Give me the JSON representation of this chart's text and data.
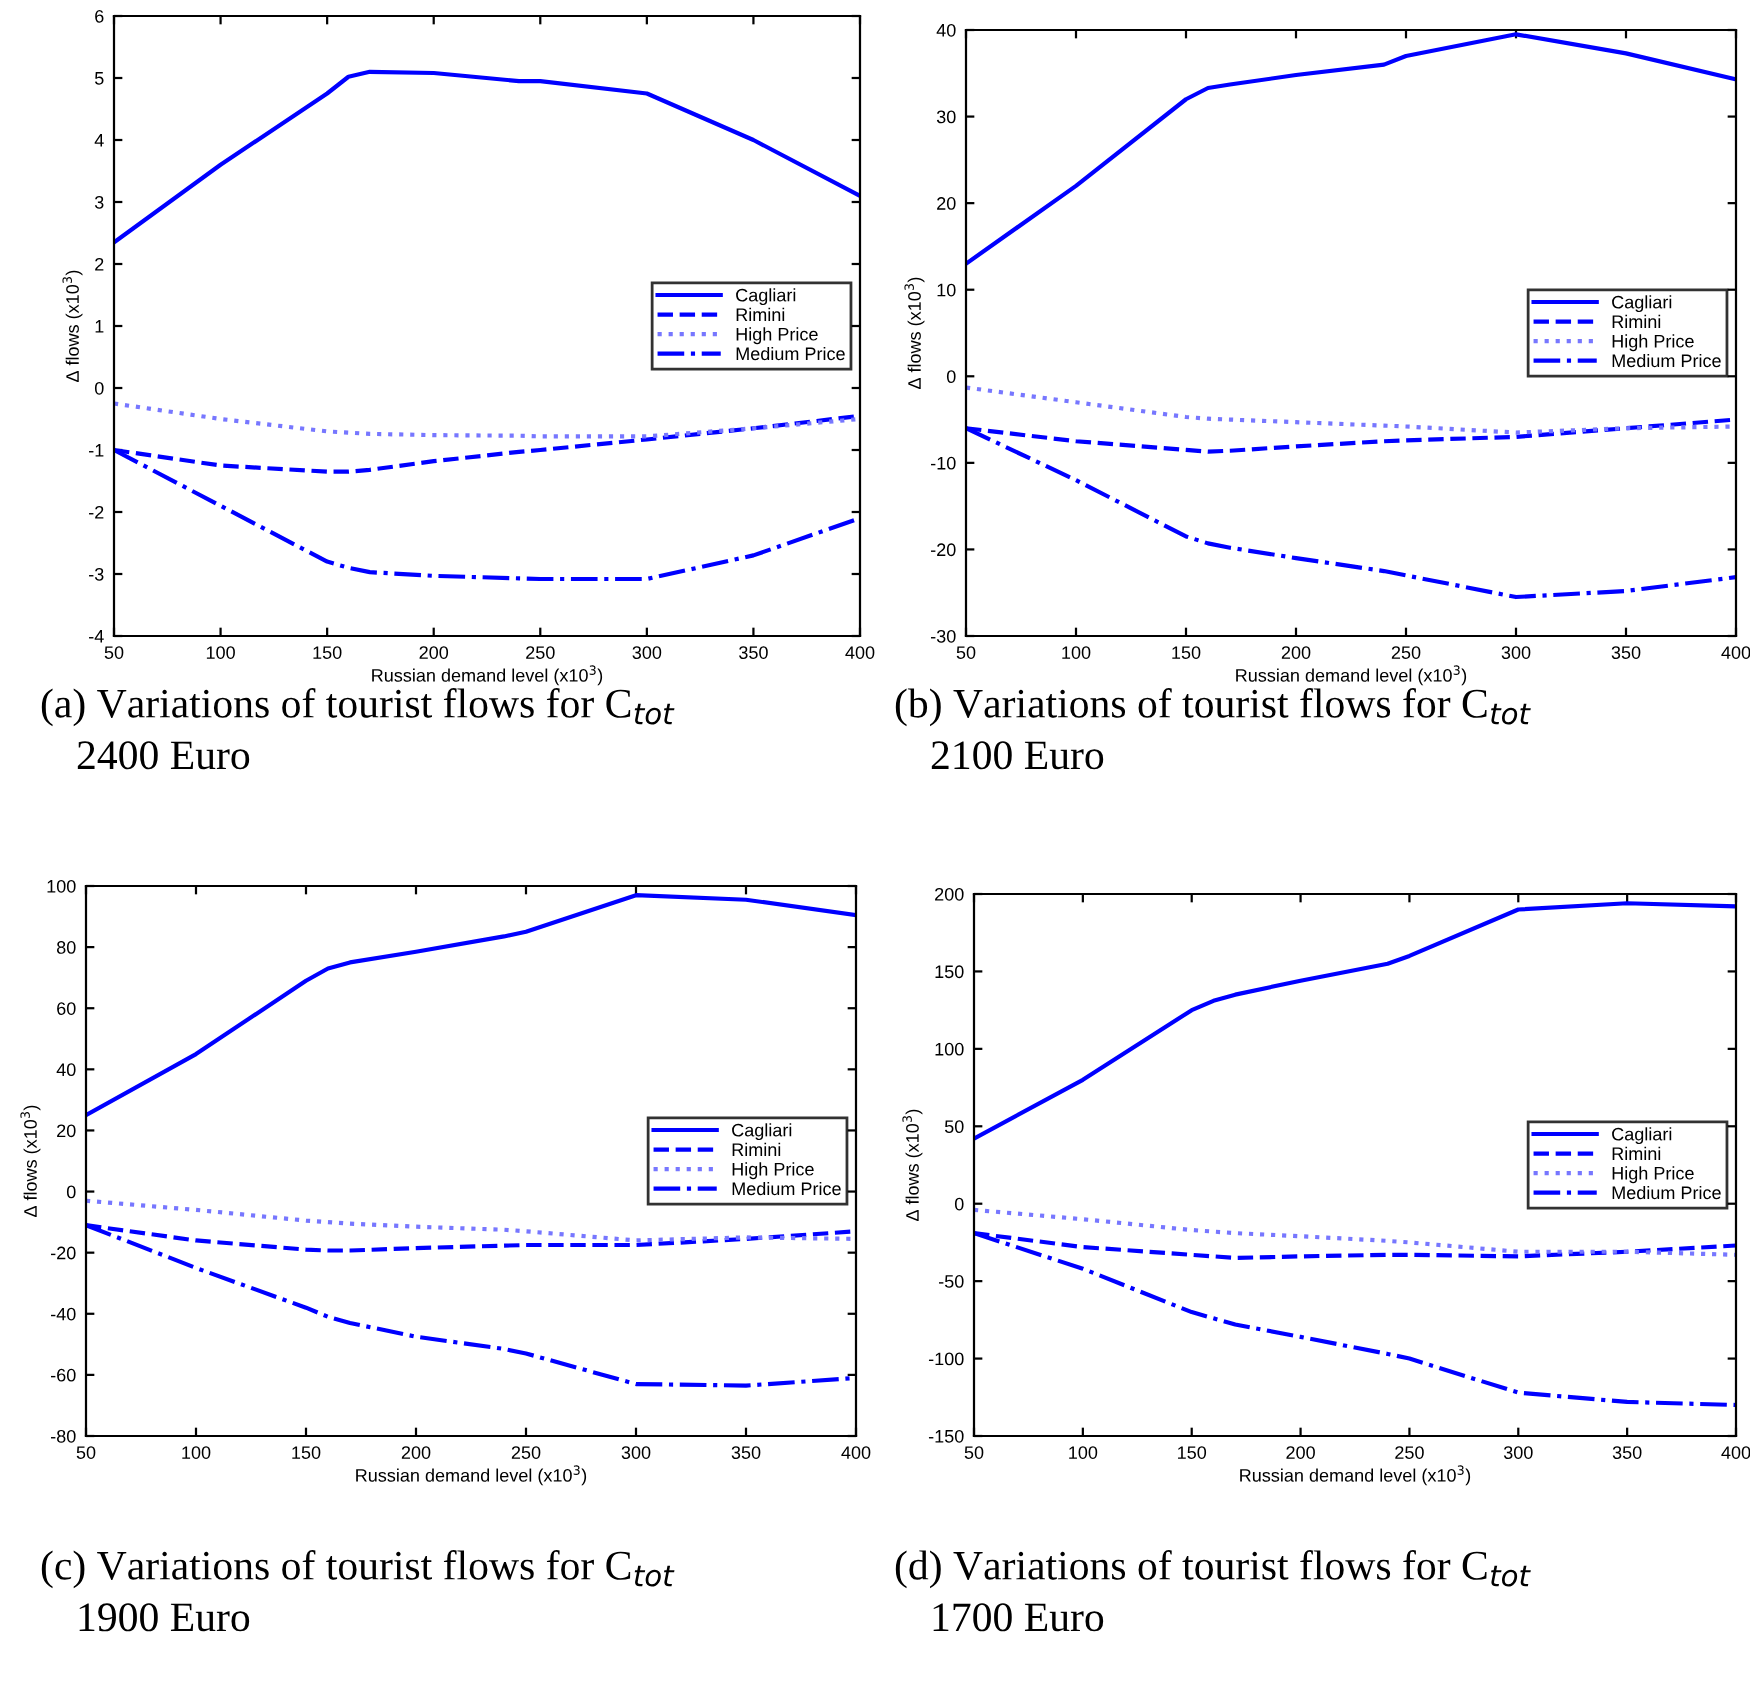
{
  "chart_data": [
    {
      "type": "line",
      "xlabel": "Russian demand level (x10$^{3}$)",
      "ylabel": "Δ flows (x10$^{3}$)",
      "xlim": [
        50,
        400
      ],
      "xticks": [
        50,
        100,
        150,
        200,
        250,
        300,
        350,
        400
      ],
      "ylim": [
        -4,
        6
      ],
      "yticks": [
        -4,
        -3,
        -2,
        -1,
        0,
        1,
        2,
        3,
        4,
        5,
        6
      ],
      "grid": false,
      "legend": "right",
      "marker": "none",
      "x": [
        50,
        100,
        150,
        160,
        170,
        200,
        240,
        250,
        300,
        350,
        400
      ],
      "annotations": [
        "(a) Variations of tourist flows for C$_{tot}$",
        "2400 Euro"
      ],
      "series": [
        {
          "name": "Cagliari",
          "color": "#0000ff",
          "line_style": "solid",
          "values": [
            2.35,
            3.6,
            4.75,
            5.02,
            5.1,
            5.08,
            4.95,
            4.95,
            4.75,
            4.0,
            3.1
          ]
        },
        {
          "name": "Rimini",
          "color": "#0000ff",
          "line_style": "dashed",
          "values": [
            -1.0,
            -1.25,
            -1.35,
            -1.35,
            -1.32,
            -1.18,
            -1.03,
            -1.0,
            -0.83,
            -0.65,
            -0.45
          ]
        },
        {
          "name": "High Price",
          "color": "#7777ff",
          "line_style": "dotted",
          "values": [
            -0.25,
            -0.5,
            -0.7,
            -0.72,
            -0.74,
            -0.76,
            -0.77,
            -0.78,
            -0.78,
            -0.65,
            -0.5
          ]
        },
        {
          "name": "Medium Price",
          "color": "#0000ff",
          "line_style": "dashdot",
          "values": [
            -1.0,
            -1.9,
            -2.8,
            -2.9,
            -2.97,
            -3.03,
            -3.07,
            -3.08,
            -3.08,
            -2.7,
            -2.1
          ]
        }
      ]
    },
    {
      "type": "line",
      "xlabel": "Russian demand level (x10$^{3}$)",
      "ylabel": "Δ flows (x10$^{3}$)",
      "xlim": [
        50,
        400
      ],
      "xticks": [
        50,
        100,
        150,
        200,
        250,
        300,
        350,
        400
      ],
      "ylim": [
        -30,
        40
      ],
      "yticks": [
        -30,
        -20,
        -10,
        0,
        10,
        20,
        30,
        40
      ],
      "grid": false,
      "legend": "right",
      "marker": "none",
      "x": [
        50,
        100,
        150,
        160,
        170,
        200,
        240,
        250,
        300,
        350,
        400
      ],
      "annotations": [
        "(b) Variations of tourist flows for C$_{tot}$",
        "2100 Euro"
      ],
      "series": [
        {
          "name": "Cagliari",
          "color": "#0000ff",
          "line_style": "solid",
          "values": [
            13,
            22,
            32,
            33.3,
            33.7,
            34.8,
            36,
            37,
            39.5,
            37.3,
            34.3
          ]
        },
        {
          "name": "Rimini",
          "color": "#0000ff",
          "line_style": "dashed",
          "values": [
            -6,
            -7.5,
            -8.5,
            -8.7,
            -8.6,
            -8.1,
            -7.5,
            -7.4,
            -7,
            -6,
            -5
          ]
        },
        {
          "name": "High Price",
          "color": "#7777ff",
          "line_style": "dotted",
          "values": [
            -1.3,
            -3,
            -4.7,
            -4.9,
            -5,
            -5.3,
            -5.7,
            -5.8,
            -6.5,
            -6,
            -5.8
          ]
        },
        {
          "name": "Medium Price",
          "color": "#0000ff",
          "line_style": "dashdot",
          "values": [
            -6,
            -12,
            -18.5,
            -19.3,
            -19.8,
            -21,
            -22.5,
            -23,
            -25.5,
            -24.8,
            -23.2
          ]
        }
      ]
    },
    {
      "type": "line",
      "xlabel": "Russian demand level (x10$^{3}$)",
      "ylabel": "Δ flows (x10$^{3}$)",
      "xlim": [
        50,
        400
      ],
      "xticks": [
        50,
        100,
        150,
        200,
        250,
        300,
        350,
        400
      ],
      "ylim": [
        -80,
        100
      ],
      "yticks": [
        -80,
        -60,
        -40,
        -20,
        0,
        20,
        40,
        60,
        80,
        100
      ],
      "grid": false,
      "legend": "right",
      "marker": "none",
      "x": [
        50,
        100,
        150,
        160,
        170,
        200,
        240,
        250,
        300,
        350,
        400
      ],
      "annotations": [
        "(c) Variations of tourist flows for C$_{tot}$",
        "1900 Euro"
      ],
      "series": [
        {
          "name": "Cagliari",
          "color": "#0000ff",
          "line_style": "solid",
          "values": [
            25,
            45,
            69,
            73,
            75,
            78.5,
            83.5,
            85,
            97,
            95.5,
            90.5
          ]
        },
        {
          "name": "Rimini",
          "color": "#0000ff",
          "line_style": "dashed",
          "values": [
            -11,
            -16,
            -19,
            -19.3,
            -19.3,
            -18.5,
            -17.7,
            -17.5,
            -17.5,
            -15.5,
            -13
          ]
        },
        {
          "name": "High Price",
          "color": "#7777ff",
          "line_style": "dotted",
          "values": [
            -3,
            -6,
            -9.5,
            -10,
            -10.5,
            -11.5,
            -12.5,
            -13,
            -16,
            -15,
            -15.5
          ]
        },
        {
          "name": "Medium Price",
          "color": "#0000ff",
          "line_style": "dashdot",
          "values": [
            -11,
            -25,
            -38,
            -41,
            -43,
            -47.5,
            -51.5,
            -53,
            -63,
            -63.5,
            -61
          ]
        }
      ]
    },
    {
      "type": "line",
      "xlabel": "Russian demand level (x10$^{3}$)",
      "ylabel": "Δ flows (x10$^{3}$)",
      "xlim": [
        50,
        400
      ],
      "xticks": [
        50,
        100,
        150,
        200,
        250,
        300,
        350,
        400
      ],
      "ylim": [
        -150,
        200
      ],
      "yticks": [
        -150,
        -100,
        -50,
        0,
        50,
        100,
        150,
        200
      ],
      "grid": false,
      "legend": "right",
      "marker": "none",
      "x": [
        50,
        100,
        150,
        160,
        170,
        200,
        240,
        250,
        300,
        350,
        400
      ],
      "annotations": [
        "(d) Variations of tourist flows for C$_{tot}$",
        "1700 Euro"
      ],
      "series": [
        {
          "name": "Cagliari",
          "color": "#0000ff",
          "line_style": "solid",
          "values": [
            42,
            80,
            125,
            131,
            135,
            144,
            155,
            160,
            190,
            194,
            192
          ]
        },
        {
          "name": "Rimini",
          "color": "#0000ff",
          "line_style": "dashed",
          "values": [
            -19,
            -28,
            -33,
            -34,
            -35,
            -34,
            -33,
            -33,
            -34,
            -31,
            -27
          ]
        },
        {
          "name": "High Price",
          "color": "#7777ff",
          "line_style": "dotted",
          "values": [
            -4,
            -10,
            -17,
            -18,
            -19,
            -21,
            -24,
            -25,
            -31,
            -31,
            -33
          ]
        },
        {
          "name": "Medium Price",
          "color": "#0000ff",
          "line_style": "dashdot",
          "values": [
            -19,
            -42,
            -70,
            -74,
            -78,
            -86,
            -97,
            -100,
            -122,
            -128,
            -130
          ]
        }
      ]
    }
  ]
}
